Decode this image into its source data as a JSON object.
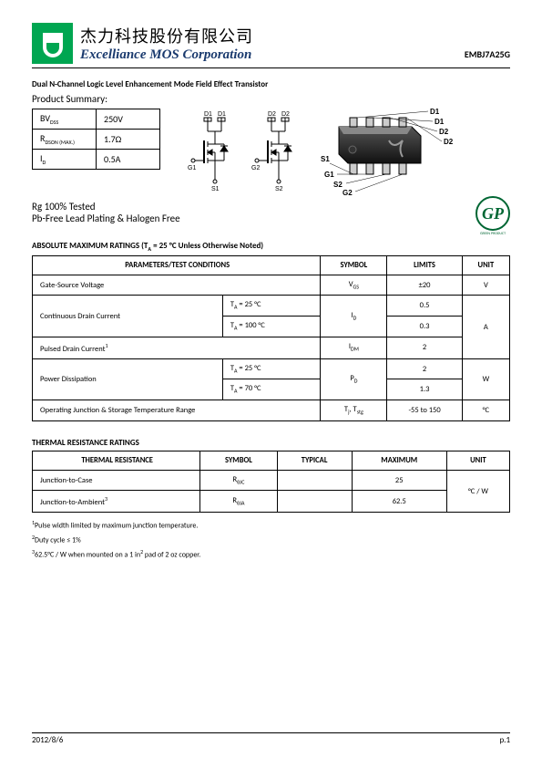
{
  "header": {
    "company_cn": "杰力科技股份有限公司",
    "company_en": "Excelliance MOS Corporation",
    "part_number": "EMBJ7A25G"
  },
  "subtitle": "Dual N-Channel Logic Level Enhancement Mode Field Effect Transistor",
  "product_summary_label": "Product Summary:",
  "summary": {
    "rows": [
      {
        "param_html": "BV<span class='sub'>DSS</span>",
        "value": "250V"
      },
      {
        "param_html": "R<span class='sub'>DSON (MAX.)</span>",
        "value": "1.7Ω"
      },
      {
        "param_html": "I<span class='sub'>D</span>",
        "value": "0.5A"
      }
    ]
  },
  "notes": [
    "Rg 100% Tested",
    "Pb-Free Lead Plating & Halogen Free"
  ],
  "gp": {
    "text": "GP",
    "label": "GREEN PRODUCT"
  },
  "abs_title_html": "ABSOLUTE MAXIMUM RATINGS (T<span class='sub'>A</span> = 25 °C Unless Otherwise Noted)",
  "abs_headers": [
    "PARAMETERS/TEST CONDITIONS",
    "SYMBOL",
    "LIMITS",
    "UNIT"
  ],
  "abs_rows": [
    {
      "param": "Gate-Source Voltage",
      "cond": "",
      "sym_html": "V<span class='sub'>GS</span>",
      "limit": "±20",
      "unit": "V"
    },
    {
      "param": "Continuous Drain Current",
      "cond_html": "T<span class='sub'>A</span> = 25 °C",
      "sym_html": "I<span class='sub'>D</span>",
      "limit": "0.5",
      "unit": "A",
      "rowspan_param": 2,
      "rowspan_sym": 2,
      "rowspan_unit": 4
    },
    {
      "cond_html": "T<span class='sub'>A</span> = 100 °C",
      "limit": "0.3"
    },
    {
      "param_html": "Pulsed Drain Current<span class='sup'>1</span>",
      "cond": "",
      "sym_html": "I<span class='sub'>DM</span>",
      "limit": "2"
    },
    {
      "param": "Power Dissipation",
      "cond_html": "T<span class='sub'>A</span> = 25 °C",
      "sym_html": "P<span class='sub'>D</span>",
      "limit": "2",
      "unit": "W",
      "rowspan_param": 2,
      "rowspan_sym": 2,
      "rowspan_unit": 2
    },
    {
      "cond_html": "T<span class='sub'>A</span> = 70 °C",
      "limit": "1.3"
    },
    {
      "param": "Operating Junction & Storage Temperature Range",
      "cond": "",
      "sym_html": "T<span class='sub'>j</span>, T<span class='sub'>stg</span>",
      "limit": "-55 to 150",
      "unit": "°C"
    }
  ],
  "therm_title": "THERMAL RESISTANCE RATINGS",
  "therm_headers": [
    "THERMAL RESISTANCE",
    "SYMBOL",
    "TYPICAL",
    "MAXIMUM",
    "UNIT"
  ],
  "therm_rows": [
    {
      "param": "Junction-to-Case",
      "sym_html": "R<span class='sub'>θJC</span>",
      "typ": "",
      "max": "25",
      "unit": "°C / W",
      "rowspan_unit": 2
    },
    {
      "param_html": "Junction-to-Ambient<span class='sup'>3</span>",
      "sym_html": "R<span class='sub'>θJA</span>",
      "typ": "",
      "max": "62.5"
    }
  ],
  "footnotes": [
    "<span class='sup'>1</span>Pulse width limited by maximum junction temperature.",
    "<span class='sup'>2</span>Duty cycle ≤ 1%",
    "<span class='sup'>3</span>62.5°C / W when mounted on a 1 in<span class='sup'>2</span> pad of 2 oz copper."
  ],
  "footer": {
    "date": "2012/8/6",
    "page": "p.1"
  },
  "diagram": {
    "pins": [
      "D1",
      "D1",
      "D2",
      "D2",
      "G1",
      "S1",
      "G2",
      "S2"
    ],
    "pkg_labels": [
      "D1",
      "D1",
      "D2",
      "D2",
      "S1",
      "G1",
      "S2",
      "G2"
    ]
  }
}
